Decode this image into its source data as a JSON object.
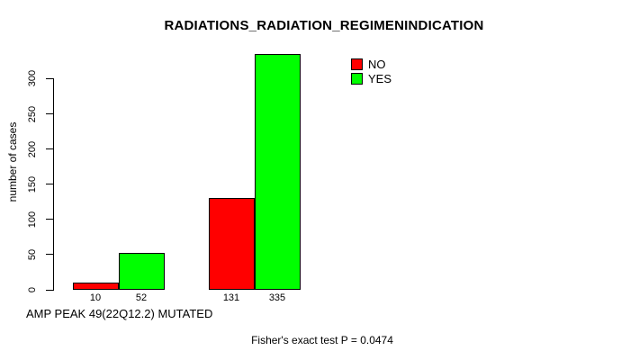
{
  "chart_data": {
    "type": "bar",
    "title": "RADIATIONS_RADIATION_REGIMENINDICATION",
    "ylabel": "number of cases",
    "xlabel": "AMP PEAK 49(22Q12.2) MUTATED",
    "footnote": "Fisher's exact test P = 0.0474",
    "series": [
      {
        "name": "NO",
        "color": "#ff0000",
        "values": [
          10,
          131
        ]
      },
      {
        "name": "YES",
        "color": "#00ff00",
        "values": [
          52,
          335
        ]
      }
    ],
    "yticks": [
      0,
      50,
      100,
      150,
      200,
      250,
      300
    ],
    "ylim": [
      0,
      335
    ],
    "grid": false,
    "legend_position": "top-right-inside",
    "value_labels_shown": true,
    "bar_border_color": "#000000",
    "axis_color": "#000000",
    "background_color": "#ffffff"
  }
}
